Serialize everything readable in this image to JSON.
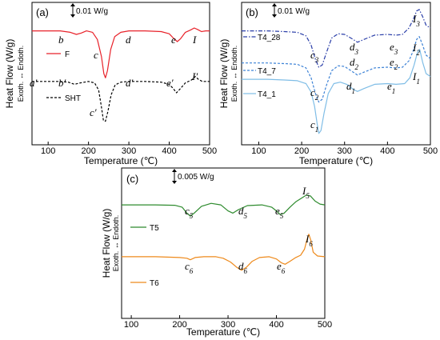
{
  "chart_data": [
    {
      "type": "line",
      "panel_label": "(a)",
      "scale_bar": "0.01 W/g",
      "xlabel": "Temperature (℃)",
      "ylabel": "Heat Flow (W/g)",
      "ylabel2": "Exoth. ↔ Endoth.",
      "xlim": [
        60,
        500
      ],
      "ylim": [
        0,
        1
      ],
      "xticks": [
        100,
        200,
        300,
        400,
        500
      ],
      "series": [
        {
          "name": "F",
          "color": "#e8222a",
          "dash": "solid",
          "points": [
            [
              60,
              0.8
            ],
            [
              100,
              0.8
            ],
            [
              130,
              0.8
            ],
            [
              155,
              0.79
            ],
            [
              170,
              0.775
            ],
            [
              182,
              0.785
            ],
            [
              195,
              0.8
            ],
            [
              210,
              0.79
            ],
            [
              222,
              0.74
            ],
            [
              232,
              0.62
            ],
            [
              238,
              0.5
            ],
            [
              242,
              0.47
            ],
            [
              247,
              0.52
            ],
            [
              255,
              0.67
            ],
            [
              265,
              0.76
            ],
            [
              280,
              0.79
            ],
            [
              300,
              0.8
            ],
            [
              340,
              0.8
            ],
            [
              380,
              0.795
            ],
            [
              400,
              0.78
            ],
            [
              410,
              0.75
            ],
            [
              420,
              0.725
            ],
            [
              428,
              0.745
            ],
            [
              440,
              0.79
            ],
            [
              452,
              0.805
            ],
            [
              462,
              0.82
            ],
            [
              470,
              0.81
            ],
            [
              480,
              0.795
            ],
            [
              490,
              0.8
            ],
            [
              500,
              0.8
            ]
          ]
        },
        {
          "name": "SHT",
          "color": "#000000",
          "dash": "dash",
          "points": [
            [
              60,
              0.445
            ],
            [
              100,
              0.445
            ],
            [
              130,
              0.445
            ],
            [
              150,
              0.44
            ],
            [
              165,
              0.425
            ],
            [
              180,
              0.435
            ],
            [
              200,
              0.445
            ],
            [
              215,
              0.435
            ],
            [
              225,
              0.385
            ],
            [
              232,
              0.265
            ],
            [
              237,
              0.17
            ],
            [
              242,
              0.165
            ],
            [
              248,
              0.235
            ],
            [
              256,
              0.35
            ],
            [
              266,
              0.42
            ],
            [
              280,
              0.44
            ],
            [
              300,
              0.445
            ],
            [
              340,
              0.445
            ],
            [
              380,
              0.44
            ],
            [
              400,
              0.425
            ],
            [
              410,
              0.395
            ],
            [
              418,
              0.365
            ],
            [
              426,
              0.39
            ],
            [
              440,
              0.435
            ],
            [
              455,
              0.455
            ],
            [
              465,
              0.48
            ],
            [
              472,
              0.46
            ],
            [
              482,
              0.445
            ],
            [
              500,
              0.445
            ]
          ]
        }
      ],
      "annotations": [
        "b",
        "c",
        "d",
        "e",
        "I",
        "a′",
        "b′",
        "c′",
        "d′",
        "e′",
        "I′"
      ]
    },
    {
      "type": "line",
      "panel_label": "(b)",
      "scale_bar": "0.01 W/g",
      "xlabel": "Temperature (℃)",
      "ylabel": "Heat Flow (W/g)",
      "ylabel2": "Exoth. ↔ Endoth.",
      "xlim": [
        60,
        500
      ],
      "ylim": [
        0,
        1
      ],
      "xticks": [
        100,
        200,
        300,
        400,
        500
      ],
      "series": [
        {
          "name": "T4_28",
          "color": "#2a3ea8",
          "dash": "dashdot",
          "points": [
            [
              60,
              0.8
            ],
            [
              120,
              0.8
            ],
            [
              160,
              0.795
            ],
            [
              190,
              0.79
            ],
            [
              210,
              0.765
            ],
            [
              222,
              0.7
            ],
            [
              232,
              0.6
            ],
            [
              240,
              0.545
            ],
            [
              248,
              0.56
            ],
            [
              258,
              0.65
            ],
            [
              270,
              0.75
            ],
            [
              285,
              0.78
            ],
            [
              300,
              0.775
            ],
            [
              320,
              0.74
            ],
            [
              330,
              0.72
            ],
            [
              345,
              0.74
            ],
            [
              370,
              0.77
            ],
            [
              400,
              0.775
            ],
            [
              420,
              0.77
            ],
            [
              435,
              0.775
            ],
            [
              450,
              0.82
            ],
            [
              460,
              0.88
            ],
            [
              468,
              0.94
            ],
            [
              474,
              0.95
            ],
            [
              482,
              0.9
            ],
            [
              490,
              0.84
            ],
            [
              500,
              0.82
            ]
          ]
        },
        {
          "name": "T4_7",
          "color": "#3c82d6",
          "dash": "dash",
          "points": [
            [
              60,
              0.575
            ],
            [
              120,
              0.575
            ],
            [
              160,
              0.57
            ],
            [
              190,
              0.565
            ],
            [
              210,
              0.54
            ],
            [
              222,
              0.47
            ],
            [
              232,
              0.36
            ],
            [
              240,
              0.3
            ],
            [
              248,
              0.32
            ],
            [
              258,
              0.42
            ],
            [
              270,
              0.52
            ],
            [
              285,
              0.555
            ],
            [
              300,
              0.55
            ],
            [
              320,
              0.51
            ],
            [
              330,
              0.49
            ],
            [
              345,
              0.51
            ],
            [
              370,
              0.54
            ],
            [
              400,
              0.545
            ],
            [
              420,
              0.54
            ],
            [
              435,
              0.545
            ],
            [
              450,
              0.59
            ],
            [
              460,
              0.66
            ],
            [
              468,
              0.74
            ],
            [
              474,
              0.76
            ],
            [
              482,
              0.7
            ],
            [
              490,
              0.63
            ],
            [
              500,
              0.605
            ]
          ]
        },
        {
          "name": "T4_1",
          "color": "#7fbde6",
          "dash": "solid",
          "points": [
            [
              60,
              0.46
            ],
            [
              120,
              0.46
            ],
            [
              160,
              0.455
            ],
            [
              190,
              0.45
            ],
            [
              210,
              0.43
            ],
            [
              222,
              0.37
            ],
            [
              230,
              0.27
            ],
            [
              236,
              0.15
            ],
            [
              240,
              0.08
            ],
            [
              245,
              0.1
            ],
            [
              252,
              0.22
            ],
            [
              262,
              0.36
            ],
            [
              275,
              0.43
            ],
            [
              290,
              0.44
            ],
            [
              305,
              0.425
            ],
            [
              320,
              0.39
            ],
            [
              330,
              0.375
            ],
            [
              345,
              0.395
            ],
            [
              370,
              0.425
            ],
            [
              400,
              0.43
            ],
            [
              420,
              0.425
            ],
            [
              440,
              0.43
            ],
            [
              452,
              0.47
            ],
            [
              462,
              0.56
            ],
            [
              470,
              0.65
            ],
            [
              475,
              0.67
            ],
            [
              482,
              0.58
            ],
            [
              490,
              0.5
            ],
            [
              500,
              0.48
            ]
          ]
        }
      ],
      "annotations": [
        "c3",
        "d3",
        "e3",
        "I3",
        "c2",
        "d2",
        "e2",
        "I2",
        "c1",
        "d1",
        "e1",
        "I1"
      ]
    },
    {
      "type": "line",
      "panel_label": "(c)",
      "scale_bar": "0.005 W/g",
      "xlabel": "Temperature (℃)",
      "ylabel": "Heat Flow (W/g)",
      "ylabel2": "Exoth. ↔ Endoth.",
      "xlim": [
        80,
        500
      ],
      "ylim": [
        0,
        1
      ],
      "xticks": [
        100,
        200,
        300,
        400,
        500
      ],
      "series": [
        {
          "name": "T5",
          "color": "#2e8b2e",
          "dash": "solid",
          "points": [
            [
              80,
              0.755
            ],
            [
              150,
              0.755
            ],
            [
              190,
              0.752
            ],
            [
              205,
              0.74
            ],
            [
              215,
              0.7
            ],
            [
              222,
              0.68
            ],
            [
              230,
              0.7
            ],
            [
              245,
              0.745
            ],
            [
              265,
              0.765
            ],
            [
              285,
              0.755
            ],
            [
              300,
              0.715
            ],
            [
              310,
              0.7
            ],
            [
              320,
              0.72
            ],
            [
              340,
              0.75
            ],
            [
              370,
              0.755
            ],
            [
              390,
              0.74
            ],
            [
              400,
              0.715
            ],
            [
              408,
              0.69
            ],
            [
              416,
              0.7
            ],
            [
              428,
              0.74
            ],
            [
              440,
              0.775
            ],
            [
              452,
              0.8
            ],
            [
              462,
              0.82
            ],
            [
              470,
              0.815
            ],
            [
              480,
              0.78
            ],
            [
              490,
              0.76
            ],
            [
              500,
              0.755
            ]
          ]
        },
        {
          "name": "T6",
          "color": "#ee8a1c",
          "dash": "solid",
          "points": [
            [
              80,
              0.41
            ],
            [
              150,
              0.41
            ],
            [
              200,
              0.405
            ],
            [
              215,
              0.4
            ],
            [
              222,
              0.39
            ],
            [
              232,
              0.405
            ],
            [
              250,
              0.41
            ],
            [
              275,
              0.41
            ],
            [
              290,
              0.4
            ],
            [
              305,
              0.375
            ],
            [
              318,
              0.34
            ],
            [
              328,
              0.32
            ],
            [
              338,
              0.34
            ],
            [
              350,
              0.38
            ],
            [
              365,
              0.405
            ],
            [
              385,
              0.41
            ],
            [
              400,
              0.395
            ],
            [
              410,
              0.37
            ],
            [
              418,
              0.36
            ],
            [
              428,
              0.38
            ],
            [
              440,
              0.405
            ],
            [
              450,
              0.42
            ],
            [
              458,
              0.46
            ],
            [
              463,
              0.52
            ],
            [
              467,
              0.56
            ],
            [
              471,
              0.52
            ],
            [
              476,
              0.44
            ],
            [
              485,
              0.415
            ],
            [
              500,
              0.41
            ]
          ]
        }
      ],
      "annotations": [
        "c5",
        "d5",
        "e5",
        "I5",
        "c6",
        "d6",
        "e6",
        "I6"
      ]
    }
  ]
}
